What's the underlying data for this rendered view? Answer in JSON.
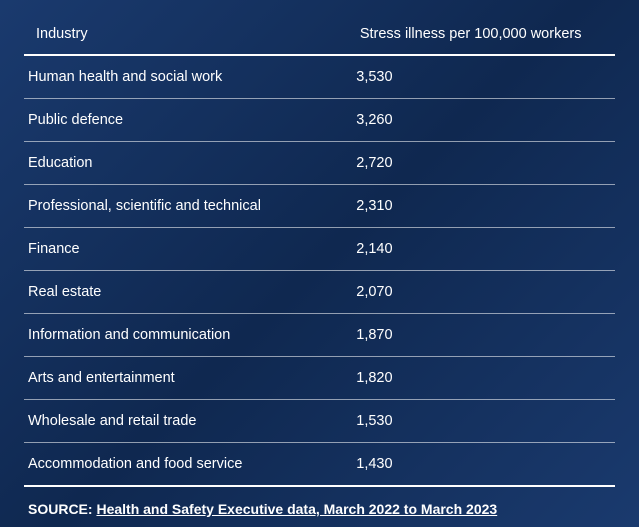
{
  "table": {
    "type": "table",
    "background_gradient": [
      "#1a3a6e",
      "#0f2850",
      "#1a3a6e"
    ],
    "text_color": "#ffffff",
    "header_border_color": "#ffffff",
    "row_border_color": "rgba(255,255,255,0.55)",
    "font_size_pt": 11,
    "columns": [
      {
        "label": "Industry",
        "width_pct": 55,
        "align": "left"
      },
      {
        "label": "Stress illness per 100,000 workers",
        "width_pct": 45,
        "align": "left"
      }
    ],
    "rows": [
      {
        "industry": "Human health and social work",
        "value": "3,530"
      },
      {
        "industry": "Public defence",
        "value": "3,260"
      },
      {
        "industry": "Education",
        "value": "2,720"
      },
      {
        "industry": "Professional, scientific and technical",
        "value": "2,310"
      },
      {
        "industry": "Finance",
        "value": "2,140"
      },
      {
        "industry": "Real estate",
        "value": "2,070"
      },
      {
        "industry": "Information and communication",
        "value": "1,870"
      },
      {
        "industry": "Arts and entertainment",
        "value": "1,820"
      },
      {
        "industry": "Wholesale and retail trade",
        "value": "1,530"
      },
      {
        "industry": "Accommodation and food service",
        "value": "1,430"
      }
    ]
  },
  "source": {
    "label": "SOURCE:",
    "text": "Health and Safety Executive data, March 2022 to March 2023"
  }
}
